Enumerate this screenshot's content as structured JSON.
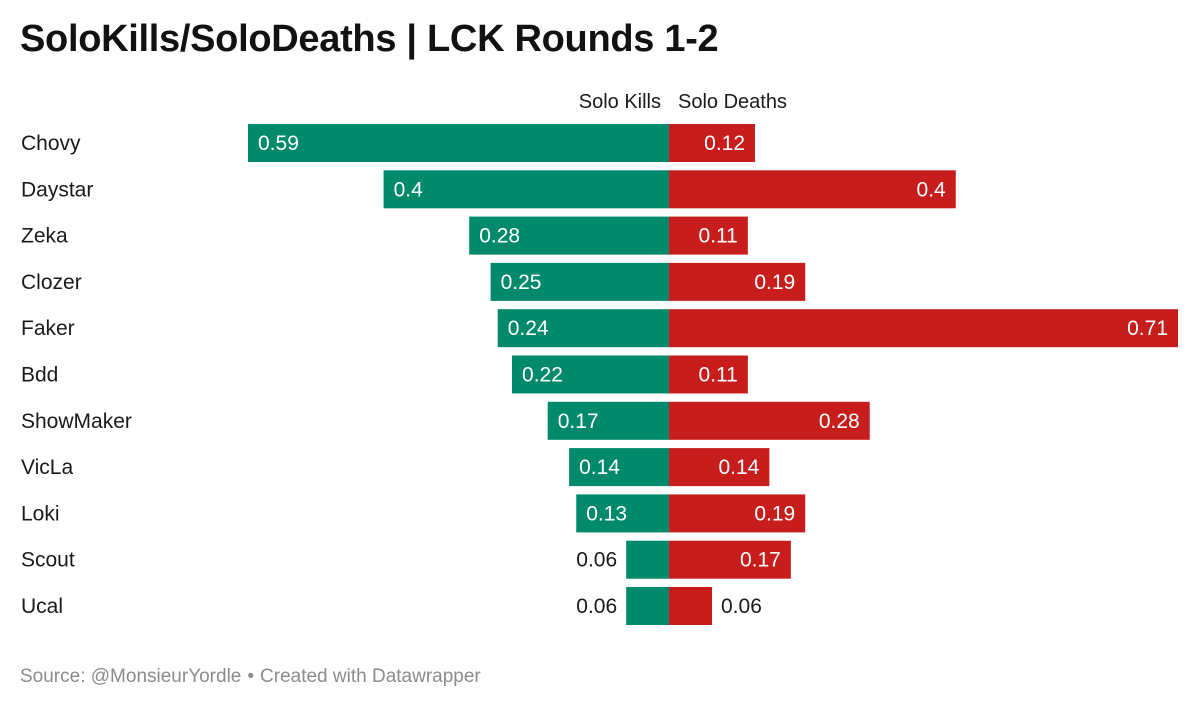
{
  "title": "SoloKills/SoloDeaths | LCK Rounds 1-2",
  "footer": {
    "source": "Source: @MonsieurYordle",
    "separator": "•",
    "credit": "Created with Datawrapper"
  },
  "colors": {
    "solo_kills": "#00896b",
    "solo_deaths": "#c71e1d",
    "label_inside": "#ffffff",
    "label_outside": "#1a1a1a"
  },
  "chart_data": {
    "type": "bar",
    "orientation": "horizontal-diverging",
    "categories": [
      "Chovy",
      "Daystar",
      "Zeka",
      "Clozer",
      "Faker",
      "Bdd",
      "ShowMaker",
      "VicLa",
      "Loki",
      "Scout",
      "Ucal"
    ],
    "series": [
      {
        "name": "Solo Kills",
        "direction": "left",
        "values": [
          0.59,
          0.4,
          0.28,
          0.25,
          0.24,
          0.22,
          0.17,
          0.14,
          0.13,
          0.06,
          0.06
        ]
      },
      {
        "name": "Solo Deaths",
        "direction": "right",
        "values": [
          0.12,
          0.4,
          0.11,
          0.19,
          0.71,
          0.11,
          0.28,
          0.14,
          0.19,
          0.17,
          0.06
        ]
      }
    ],
    "value_labels": {
      "Solo Kills": [
        "0.59",
        "0.4",
        "0.28",
        "0.25",
        "0.24",
        "0.22",
        "0.17",
        "0.14",
        "0.13",
        "0.06",
        "0.06"
      ],
      "Solo Deaths": [
        "0.12",
        "0.4",
        "0.11",
        "0.19",
        "0.71",
        "0.11",
        "0.28",
        "0.14",
        "0.19",
        "0.17",
        "0.06"
      ]
    },
    "xlim": [
      -0.59,
      0.71
    ],
    "grid": false,
    "legend": "column-headers-top"
  }
}
